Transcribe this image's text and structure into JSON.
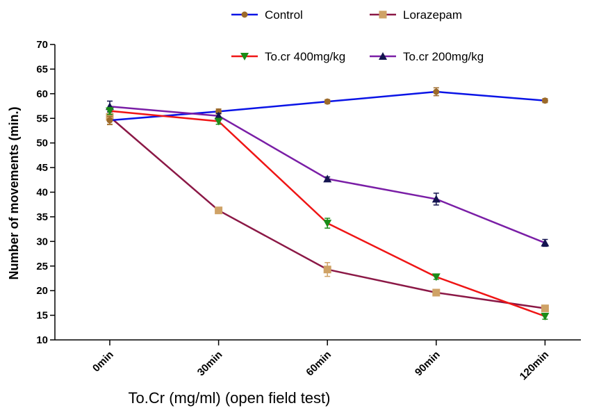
{
  "chart_data": {
    "type": "line",
    "title": "",
    "xlabel": "To.Cr (mg/ml) (open field test)",
    "ylabel": "Number of movements (min.)",
    "categories": [
      "0min",
      "30min",
      "60min",
      "90min",
      "120min"
    ],
    "ylim": [
      10,
      70
    ],
    "yticks": [
      10,
      15,
      20,
      25,
      30,
      35,
      40,
      45,
      50,
      55,
      60,
      65,
      70
    ],
    "grid": false,
    "legend_position": "top",
    "series": [
      {
        "name": "Control",
        "line_color": "#0a14e6",
        "marker_color": "#9c6a2a",
        "marker": "circle",
        "values": [
          54.6,
          56.4,
          58.4,
          60.4,
          58.6
        ],
        "errors": [
          0.8,
          0.5,
          0.4,
          0.8,
          0.4
        ]
      },
      {
        "name": "Lorazepam",
        "line_color": "#8b1846",
        "marker_color": "#cfa266",
        "marker": "square",
        "values": [
          55.3,
          36.3,
          24.3,
          19.6,
          16.4
        ],
        "errors": [
          1.6,
          0.5,
          1.4,
          0.6,
          0.5
        ]
      },
      {
        "name": "To.cr 400mg/kg",
        "line_color": "#ef1515",
        "marker_color": "#1b8c18",
        "marker": "triangle-down",
        "values": [
          56.5,
          54.4,
          33.7,
          22.8,
          14.8
        ],
        "errors": [
          0.7,
          0.6,
          1.0,
          0.5,
          0.6
        ]
      },
      {
        "name": "To.cr 200mg/kg",
        "line_color": "#7a1ea6",
        "marker_color": "#141450",
        "marker": "triangle-up",
        "values": [
          57.4,
          55.5,
          42.7,
          38.6,
          29.7
        ],
        "errors": [
          1.1,
          0.5,
          0.4,
          1.2,
          0.7
        ]
      }
    ]
  }
}
